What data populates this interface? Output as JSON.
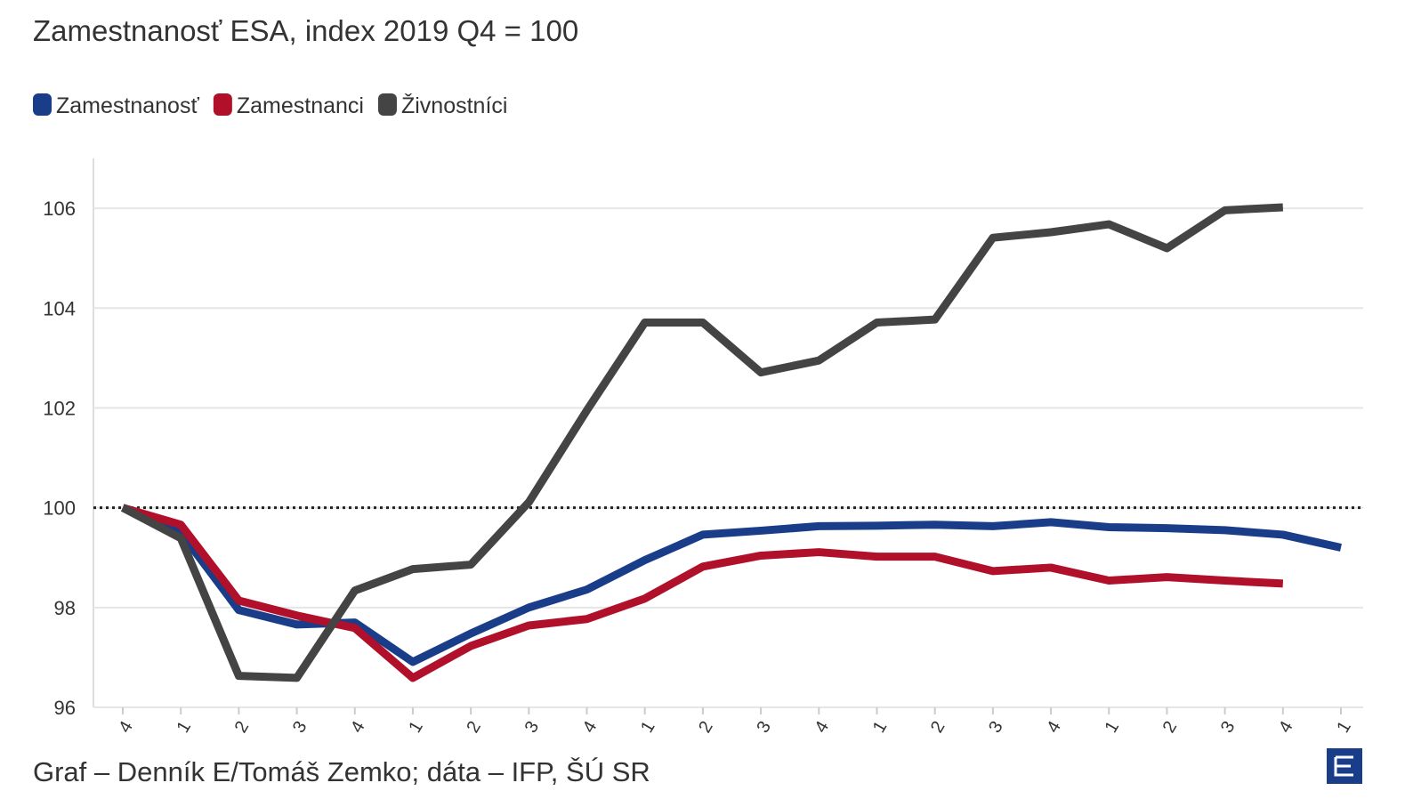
{
  "chart_data": {
    "type": "line",
    "title": "Zamestnanosť ESA, index 2019 Q4 = 100",
    "footer": "Graf – Denník E/Tomáš Zemko; dáta – IFP, ŠÚ SR",
    "categories": [
      "4",
      "1",
      "2",
      "3",
      "4",
      "1",
      "2",
      "3",
      "4",
      "1",
      "2",
      "3",
      "4",
      "1",
      "2",
      "3",
      "4",
      "1",
      "2",
      "3",
      "4",
      "1"
    ],
    "series": [
      {
        "name": "Zamestnanosť",
        "color": "#1a3d8a",
        "values": [
          100,
          99.5,
          97.95,
          97.66,
          97.7,
          96.91,
          97.48,
          98.0,
          98.36,
          98.95,
          99.46,
          99.54,
          99.63,
          99.64,
          99.66,
          99.63,
          99.71,
          99.61,
          99.59,
          99.55,
          99.46,
          99.2
        ]
      },
      {
        "name": "Zamestnanci",
        "color": "#b0102a",
        "values": [
          100,
          99.66,
          98.14,
          97.84,
          97.59,
          96.59,
          97.23,
          97.64,
          97.77,
          98.18,
          98.82,
          99.04,
          99.11,
          99.02,
          99.02,
          98.73,
          98.8,
          98.54,
          98.61,
          98.54,
          98.48,
          null
        ]
      },
      {
        "name": "Živnostníci",
        "color": "#444444",
        "values": [
          100,
          99.39,
          96.63,
          96.59,
          98.34,
          98.77,
          98.86,
          100.11,
          101.95,
          103.71,
          103.71,
          102.71,
          102.95,
          103.71,
          103.77,
          105.41,
          105.52,
          105.68,
          105.2,
          105.96,
          106.02,
          null
        ]
      }
    ],
    "ylim": [
      96,
      107
    ],
    "yticks": [
      96,
      98,
      100,
      102,
      104,
      106
    ],
    "grid": true,
    "hline": 100,
    "legend": "top-left"
  }
}
